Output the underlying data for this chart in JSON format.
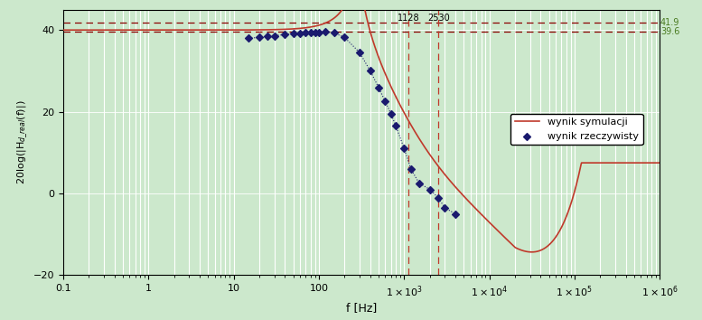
{
  "title": "",
  "xlabel": "f [Hz]",
  "ylabel": "20log(❘H_{d_real}(f)❘)",
  "xlim": [
    0.1,
    1000000.0
  ],
  "ylim": [
    -20,
    45
  ],
  "yticks": [
    -20,
    0,
    20,
    40
  ],
  "hline1_y": 41.9,
  "hline2_y": 39.6,
  "vline1_x": 1128,
  "vline2_x": 2530,
  "hline1_label": "41.9",
  "hline2_label": "39.6",
  "vline1_label": "1128",
  "vline2_label": "2530",
  "sim_color": "#c0392b",
  "scatter_color": "#1a1a6e",
  "bg_color": "#cce8cc",
  "grid_color": "#ffffff",
  "hline_color": "#8B0000",
  "vline_color": "#c0392b",
  "legend_sim": "wynik symulacji",
  "legend_scatter": "wynik rzeczywisty",
  "dc_gain_db": 40.0,
  "f0": 280,
  "Q": 5.5,
  "rhz_zero_freq": 1800,
  "high_freq_gain_db": 7.5,
  "scatter_points": [
    [
      15,
      38.0
    ],
    [
      20,
      38.2
    ],
    [
      25,
      38.4
    ],
    [
      30,
      38.6
    ],
    [
      40,
      38.9
    ],
    [
      50,
      39.1
    ],
    [
      60,
      39.2
    ],
    [
      70,
      39.3
    ],
    [
      80,
      39.35
    ],
    [
      90,
      39.4
    ],
    [
      100,
      39.45
    ],
    [
      120,
      39.5
    ],
    [
      150,
      39.3
    ],
    [
      200,
      38.2
    ],
    [
      300,
      34.5
    ],
    [
      400,
      30.0
    ],
    [
      500,
      26.0
    ],
    [
      600,
      22.5
    ],
    [
      700,
      19.5
    ],
    [
      800,
      16.5
    ],
    [
      1000,
      11.0
    ],
    [
      1200,
      6.0
    ],
    [
      1500,
      2.5
    ],
    [
      2000,
      1.0
    ],
    [
      2500,
      -1.0
    ],
    [
      3000,
      -3.5
    ],
    [
      4000,
      -5.0
    ]
  ]
}
